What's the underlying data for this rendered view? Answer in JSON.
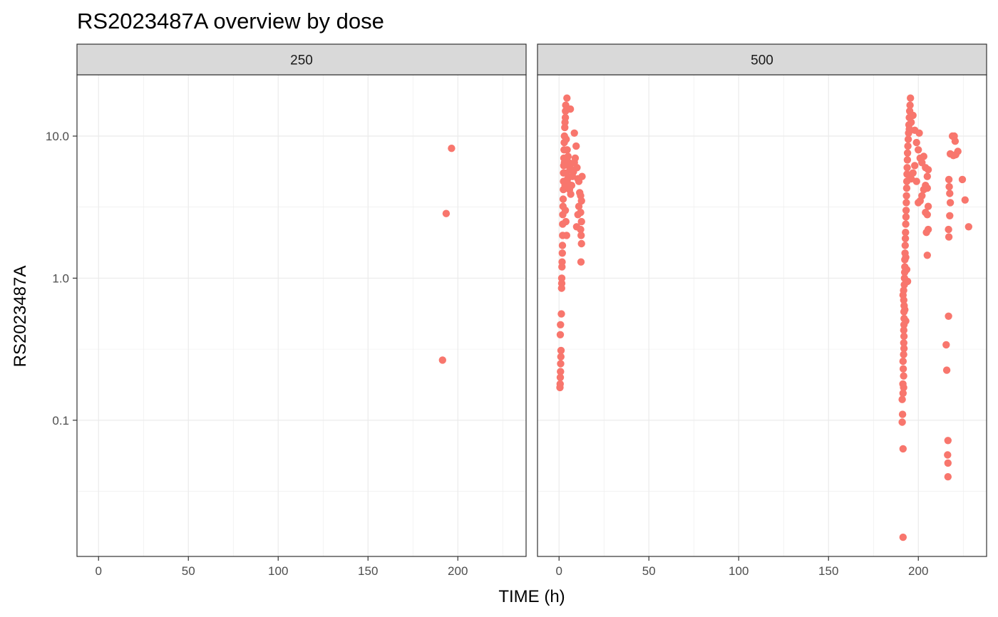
{
  "chart_data": {
    "type": "scatter",
    "title": "RS2023487A overview by dose",
    "xlabel": "TIME (h)",
    "ylabel": "RS2023487A",
    "y_scale": "log10",
    "xlim": [
      -12,
      238
    ],
    "ylim": [
      0.011,
      27
    ],
    "x_ticks": [
      0,
      50,
      100,
      150,
      200
    ],
    "x_tick_labels": [
      "0",
      "50",
      "100",
      "150",
      "200"
    ],
    "y_ticks": [
      0.1,
      1,
      10
    ],
    "y_tick_labels": [
      "0.1",
      "1.0",
      "10.0"
    ],
    "grid": true,
    "legend": "none",
    "point_color": "#F8766D",
    "facets": [
      {
        "label": "250",
        "points": [
          [
            196.5,
            8.2
          ],
          [
            193.5,
            2.85
          ],
          [
            191.5,
            0.265
          ]
        ]
      },
      {
        "label": "500",
        "points": [
          [
            0.5,
            0.17
          ],
          [
            0.6,
            0.18
          ],
          [
            0.7,
            0.2
          ],
          [
            0.8,
            0.22
          ],
          [
            0.9,
            0.25
          ],
          [
            1.0,
            0.28
          ],
          [
            1.1,
            0.31
          ],
          [
            0.7,
            0.4
          ],
          [
            0.8,
            0.47
          ],
          [
            1.3,
            0.56
          ],
          [
            1.4,
            0.85
          ],
          [
            1.5,
            0.92
          ],
          [
            1.5,
            1.0
          ],
          [
            1.6,
            1.2
          ],
          [
            1.7,
            1.3
          ],
          [
            1.8,
            1.5
          ],
          [
            1.9,
            1.7
          ],
          [
            2.0,
            2.0
          ],
          [
            2.0,
            2.4
          ],
          [
            2.1,
            2.8
          ],
          [
            2.2,
            3.2
          ],
          [
            2.3,
            3.6
          ],
          [
            2.4,
            4.2
          ],
          [
            2.5,
            4.8
          ],
          [
            2.5,
            5.5
          ],
          [
            2.6,
            6.2
          ],
          [
            2.7,
            7.0
          ],
          [
            2.8,
            8.0
          ],
          [
            2.9,
            9.0
          ],
          [
            3.0,
            10.0
          ],
          [
            3.2,
            11.5
          ],
          [
            3.3,
            12.5
          ],
          [
            3.5,
            13.5
          ],
          [
            3.6,
            15.0
          ],
          [
            3.7,
            16.5
          ],
          [
            4.4,
            18.5
          ],
          [
            6.3,
            15.5
          ],
          [
            4.0,
            9.5
          ],
          [
            4.5,
            8.0
          ],
          [
            5.0,
            7.2
          ],
          [
            5.5,
            6.5
          ],
          [
            6.0,
            6.0
          ],
          [
            4.2,
            5.5
          ],
          [
            4.8,
            5.0
          ],
          [
            5.2,
            4.6
          ],
          [
            5.8,
            4.2
          ],
          [
            6.5,
            3.9
          ],
          [
            7.0,
            4.5
          ],
          [
            7.5,
            5.2
          ],
          [
            8.0,
            5.6
          ],
          [
            8.5,
            6.5
          ],
          [
            9.0,
            7.0
          ],
          [
            8.5,
            10.5
          ],
          [
            9.5,
            8.5
          ],
          [
            10.0,
            6.0
          ],
          [
            10.5,
            5.0
          ],
          [
            11.0,
            4.8
          ],
          [
            11.5,
            4.0
          ],
          [
            12.0,
            3.8
          ],
          [
            12.5,
            3.5
          ],
          [
            12.8,
            5.2
          ],
          [
            12.0,
            2.9
          ],
          [
            12.5,
            2.5
          ],
          [
            12.0,
            2.2
          ],
          [
            12.3,
            2.0
          ],
          [
            12.5,
            1.75
          ],
          [
            12.2,
            1.3
          ],
          [
            9.8,
            2.3
          ],
          [
            10.5,
            2.8
          ],
          [
            11.0,
            3.2
          ],
          [
            3.8,
            2.5
          ],
          [
            4.2,
            2.0
          ],
          [
            3.5,
            3.0
          ],
          [
            3.3,
            4.5
          ],
          [
            3.0,
            6.5
          ],
          [
            191.5,
            0.015
          ],
          [
            191.5,
            0.063
          ],
          [
            191.0,
            0.097
          ],
          [
            191.2,
            0.11
          ],
          [
            191.0,
            0.14
          ],
          [
            191.5,
            0.155
          ],
          [
            191.8,
            0.17
          ],
          [
            191.4,
            0.18
          ],
          [
            191.8,
            0.205
          ],
          [
            191.6,
            0.23
          ],
          [
            191.5,
            0.26
          ],
          [
            191.8,
            0.29
          ],
          [
            192.0,
            0.32
          ],
          [
            191.9,
            0.35
          ],
          [
            192.0,
            0.39
          ],
          [
            191.9,
            0.43
          ],
          [
            192.0,
            0.47
          ],
          [
            192.1,
            0.52
          ],
          [
            192.0,
            0.58
          ],
          [
            192.1,
            0.64
          ],
          [
            191.9,
            0.7
          ],
          [
            191.5,
            0.76
          ],
          [
            191.8,
            0.82
          ],
          [
            192.2,
            0.9
          ],
          [
            192.3,
            1.0
          ],
          [
            192.4,
            1.1
          ],
          [
            192.5,
            1.2
          ],
          [
            192.5,
            1.35
          ],
          [
            192.6,
            1.5
          ],
          [
            192.7,
            1.7
          ],
          [
            192.8,
            1.9
          ],
          [
            192.9,
            2.1
          ],
          [
            193.0,
            2.4
          ],
          [
            193.1,
            2.7
          ],
          [
            193.2,
            3.0
          ],
          [
            193.3,
            3.4
          ],
          [
            193.4,
            3.8
          ],
          [
            193.5,
            4.3
          ],
          [
            193.6,
            4.8
          ],
          [
            193.7,
            5.4
          ],
          [
            193.8,
            6.0
          ],
          [
            193.9,
            6.8
          ],
          [
            194.0,
            7.6
          ],
          [
            194.2,
            8.5
          ],
          [
            194.4,
            9.5
          ],
          [
            194.6,
            10.5
          ],
          [
            194.8,
            12.0
          ],
          [
            195.0,
            13.5
          ],
          [
            195.2,
            15.0
          ],
          [
            195.4,
            16.5
          ],
          [
            195.6,
            18.5
          ],
          [
            195.0,
            11.2
          ],
          [
            196.0,
            12.5
          ],
          [
            197.0,
            14.0
          ],
          [
            198.0,
            11.0
          ],
          [
            199.0,
            9.0
          ],
          [
            200.0,
            8.0
          ],
          [
            200.5,
            10.5
          ],
          [
            201.0,
            7.0
          ],
          [
            202.0,
            6.5
          ],
          [
            203.0,
            7.2
          ],
          [
            204.0,
            6.0
          ],
          [
            205.0,
            5.2
          ],
          [
            205.5,
            5.8
          ],
          [
            204.0,
            4.5
          ],
          [
            203.0,
            4.2
          ],
          [
            202.0,
            3.8
          ],
          [
            201.0,
            3.5
          ],
          [
            200.0,
            3.4
          ],
          [
            205.0,
            4.3
          ],
          [
            205.5,
            3.2
          ],
          [
            204.0,
            2.9
          ],
          [
            205.0,
            2.8
          ],
          [
            205.5,
            2.2
          ],
          [
            204.5,
            2.1
          ],
          [
            205.0,
            1.45
          ],
          [
            196.0,
            5.0
          ],
          [
            197.0,
            5.5
          ],
          [
            198.0,
            6.2
          ],
          [
            199.0,
            4.8
          ],
          [
            193.0,
            1.4
          ],
          [
            193.5,
            1.15
          ],
          [
            194.0,
            0.95
          ],
          [
            192.5,
            0.6
          ],
          [
            193.0,
            0.5
          ],
          [
            216.5,
            0.04
          ],
          [
            216.5,
            0.05
          ],
          [
            216.3,
            0.057
          ],
          [
            216.5,
            0.072
          ],
          [
            215.8,
            0.225
          ],
          [
            215.5,
            0.34
          ],
          [
            216.8,
            0.54
          ],
          [
            217.0,
            1.95
          ],
          [
            216.8,
            2.2
          ],
          [
            217.5,
            2.75
          ],
          [
            217.8,
            3.4
          ],
          [
            217.5,
            3.95
          ],
          [
            217.2,
            4.4
          ],
          [
            217.0,
            4.95
          ],
          [
            217.8,
            7.5
          ],
          [
            219.0,
            10.0
          ],
          [
            220.0,
            10.0
          ],
          [
            220.5,
            9.2
          ],
          [
            219.5,
            7.3
          ],
          [
            220.8,
            7.4
          ],
          [
            222.0,
            7.8
          ],
          [
            224.5,
            4.95
          ],
          [
            226.0,
            3.55
          ],
          [
            228.0,
            2.3
          ]
        ]
      }
    ]
  }
}
